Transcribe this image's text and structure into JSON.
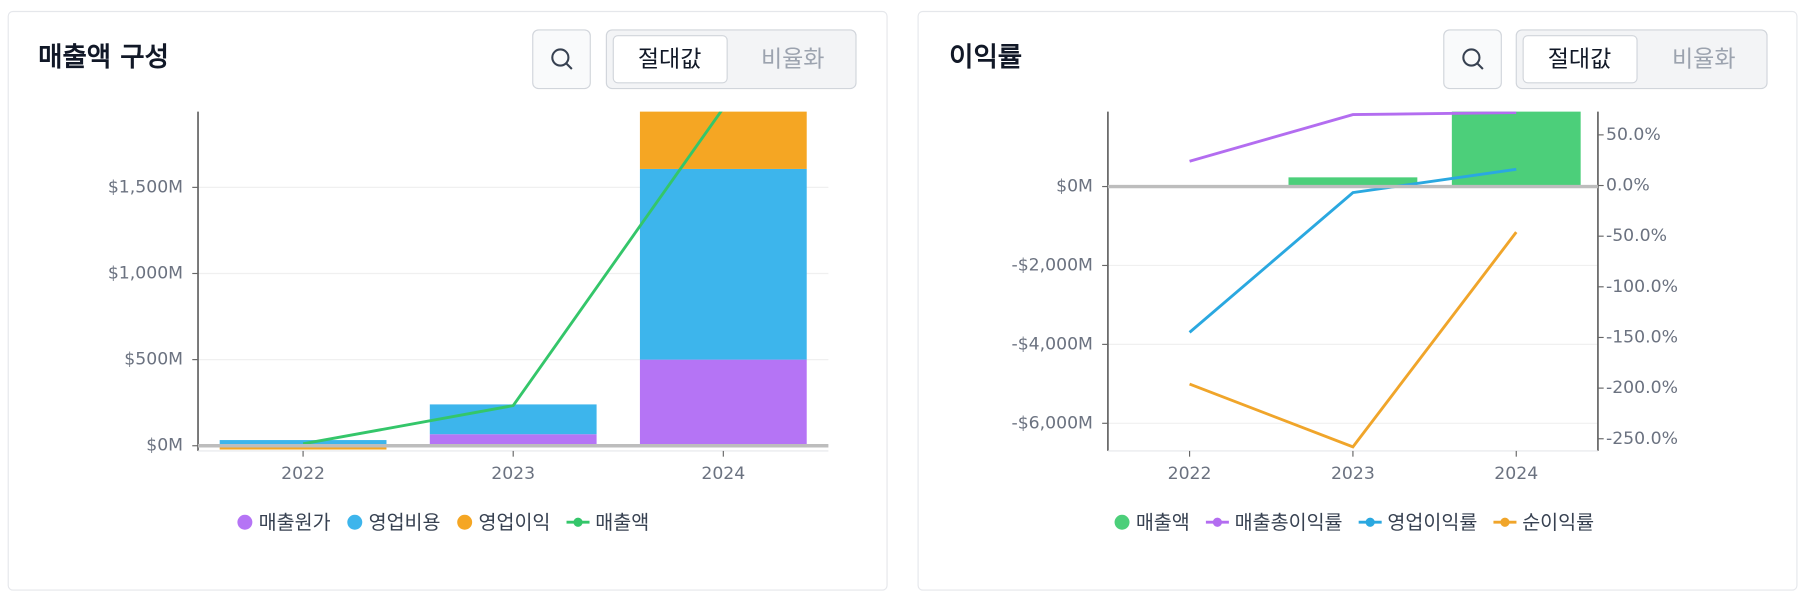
{
  "toggle_options": [
    "절대값",
    "비율화"
  ],
  "chart_data": [
    {
      "type": "combo",
      "title": "매출액 구성",
      "stacked": true,
      "grid": true,
      "categories": [
        "2022",
        "2023",
        "2024"
      ],
      "ylim": [
        -30,
        1940
      ],
      "yticks": [
        {
          "value": 0,
          "label": "$0M"
        },
        {
          "value": 500,
          "label": "$500M"
        },
        {
          "value": 1000,
          "label": "$1,000M"
        },
        {
          "value": 1500,
          "label": "$1,500M"
        }
      ],
      "series": [
        {
          "name": "매출원가",
          "type": "bar",
          "color": "#b574f5",
          "values": [
            5,
            67,
            500
          ]
        },
        {
          "name": "영업비용",
          "type": "bar",
          "color": "#3db5ec",
          "values": [
            28,
            173,
            1107
          ]
        },
        {
          "name": "영업이익",
          "type": "bar",
          "color": "#f5a623",
          "values": [
            -22,
            -5,
            350
          ]
        },
        {
          "name": "매출액",
          "type": "line",
          "color": "#34c66a",
          "values": [
            11,
            233,
            1960
          ]
        }
      ]
    },
    {
      "type": "combo",
      "title": "이익률",
      "grid": true,
      "categories": [
        "2022",
        "2023",
        "2024"
      ],
      "ylim": [
        -6700,
        1900
      ],
      "yticks": [
        {
          "value": 0,
          "label": "$0M"
        },
        {
          "value": -2000,
          "label": "-$2,000M"
        },
        {
          "value": -4000,
          "label": "-$4,000M"
        },
        {
          "value": -6000,
          "label": "-$6,000M"
        }
      ],
      "y2lim": [
        -262,
        73
      ],
      "y2ticks": [
        {
          "value": 50,
          "label": "50.0%"
        },
        {
          "value": 0,
          "label": "0.0%"
        },
        {
          "value": -50,
          "label": "-50.0%"
        },
        {
          "value": -100,
          "label": "-100.0%"
        },
        {
          "value": -150,
          "label": "-150.0%"
        },
        {
          "value": -200,
          "label": "-200.0%"
        },
        {
          "value": -250,
          "label": "-250.0%"
        }
      ],
      "series": [
        {
          "name": "매출액",
          "type": "bar",
          "color": "#4ccf7a",
          "values": [
            11,
            233,
            1960
          ]
        },
        {
          "name": "매출총이익률",
          "type": "line",
          "axis": "y2",
          "color": "#b36df0",
          "values": [
            24,
            70,
            72
          ]
        },
        {
          "name": "영업이익률",
          "type": "line",
          "axis": "y2",
          "color": "#2aa8e0",
          "values": [
            -145,
            -7,
            16
          ]
        },
        {
          "name": "순이익률",
          "type": "line",
          "axis": "y2",
          "color": "#f0a52a",
          "values": [
            -196,
            -258,
            -46
          ]
        }
      ]
    }
  ]
}
